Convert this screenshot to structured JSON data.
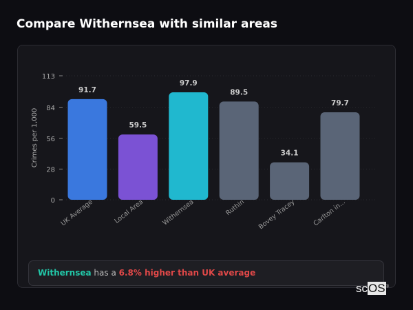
{
  "title": "Compare Withernsea with similar areas",
  "chart_data": {
    "type": "bar",
    "categories": [
      "UK Average",
      "Local Area",
      "Withernsea",
      "Ruthin",
      "Bovey Tracey",
      "Carlton in..."
    ],
    "values": [
      91.7,
      59.5,
      97.9,
      89.5,
      34.1,
      79.7
    ],
    "value_labels": [
      "91.7",
      "59.5",
      "97.9",
      "89.5",
      "34.1",
      "79.7"
    ],
    "colors": [
      "#3a78de",
      "#7b52d4",
      "#20b8cf",
      "#5a6577",
      "#5a6577",
      "#5a6577"
    ],
    "ylabel": "Crimes per 1,000",
    "xlabel": "",
    "ylim": [
      0,
      113
    ],
    "yticks": [
      "0",
      "28",
      "56",
      "84",
      "113"
    ],
    "grid": true
  },
  "summary": {
    "area": "Withernsea",
    "middle": " has a ",
    "comparison": "6.8% higher than UK average"
  },
  "logo": {
    "prefix": "sc",
    "suffix": "OS",
    "mark": "®"
  }
}
